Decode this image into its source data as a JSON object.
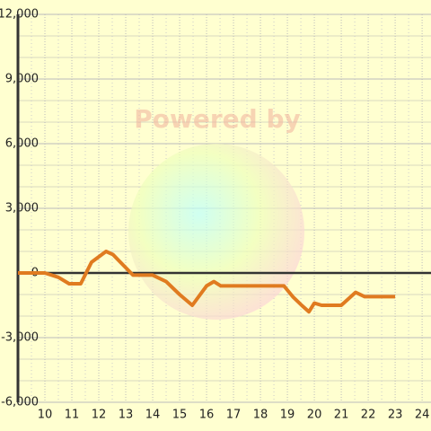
{
  "chart_data": {
    "type": "line",
    "watermark": "Powered by",
    "x": [
      9,
      10,
      10.5,
      10.9,
      11.33,
      11.73,
      12.27,
      12.53,
      13.27,
      14,
      14.5,
      15,
      15.47,
      16,
      16.27,
      16.53,
      18.87,
      19.2,
      19.53,
      19.8,
      20,
      20.27,
      21,
      21.53,
      21.87,
      23
    ],
    "series": [
      {
        "color": "#e07b20",
        "values": [
          0,
          0,
          -200,
          -500,
          -500,
          500,
          1000,
          850,
          -100,
          -100,
          -400,
          -1000,
          -1500,
          -600,
          -400,
          -600,
          -600,
          -1100,
          -1500,
          -1800,
          -1400,
          -1500,
          -1500,
          -900,
          -1100,
          -1100
        ]
      }
    ],
    "xlim": [
      9,
      24.33
    ],
    "xticks": [
      10,
      11,
      12,
      13,
      14,
      15,
      16,
      17,
      18,
      19,
      20,
      21,
      22,
      23,
      24
    ],
    "ylim": [
      -6000,
      12000
    ],
    "yticks": [
      {
        "value": -6000,
        "label": "-6,000"
      },
      {
        "value": -3000,
        "label": "-3,000"
      },
      0,
      {
        "value": 3000,
        "label": "3,000"
      },
      {
        "value": 6000,
        "label": "6,000"
      },
      {
        "value": 9000,
        "label": "9,000"
      },
      {
        "value": 12000,
        "label": "12,000"
      }
    ],
    "grid": true
  }
}
